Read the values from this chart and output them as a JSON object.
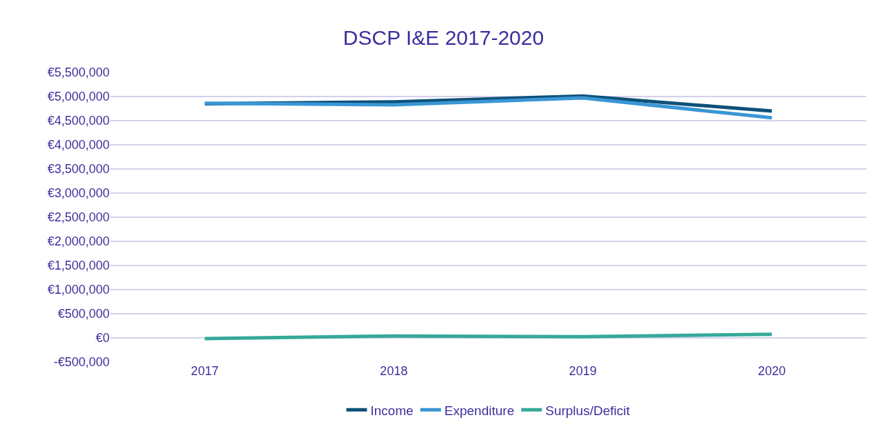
{
  "chart_data": {
    "type": "line",
    "title": "DSCP I&E 2017-2020",
    "categories": [
      "2017",
      "2018",
      "2019",
      "2020"
    ],
    "series": [
      {
        "name": "Income",
        "color": "#0e5178",
        "values": [
          4850000,
          4890000,
          5010000,
          4700000
        ]
      },
      {
        "name": "Expenditure",
        "color": "#3a96d6",
        "values": [
          4860000,
          4830000,
          4970000,
          4560000
        ]
      },
      {
        "name": "Surplus/Deficit",
        "color": "#35a99a",
        "values": [
          -15000,
          40000,
          25000,
          75000
        ]
      }
    ],
    "ylim": [
      -500000,
      5500000
    ],
    "yticks": [
      {
        "value": -500000,
        "label": "-€500,000"
      },
      {
        "value": 0,
        "label": "€0"
      },
      {
        "value": 500000,
        "label": "€500,000"
      },
      {
        "value": 1000000,
        "label": "€1,000,000"
      },
      {
        "value": 1500000,
        "label": "€1,500,000"
      },
      {
        "value": 2000000,
        "label": "€2,000,000"
      },
      {
        "value": 2500000,
        "label": "€2,500,000"
      },
      {
        "value": 3000000,
        "label": "€3,000,000"
      },
      {
        "value": 3500000,
        "label": "€3,500,000"
      },
      {
        "value": 4000000,
        "label": "€4,000,000"
      },
      {
        "value": 4500000,
        "label": "€4,500,000"
      },
      {
        "value": 5000000,
        "label": "€5,000,000"
      },
      {
        "value": 5500000,
        "label": "€5,500,000"
      }
    ],
    "grid": "y",
    "legend": "bottom",
    "marker": "none",
    "line_style": "solid"
  }
}
